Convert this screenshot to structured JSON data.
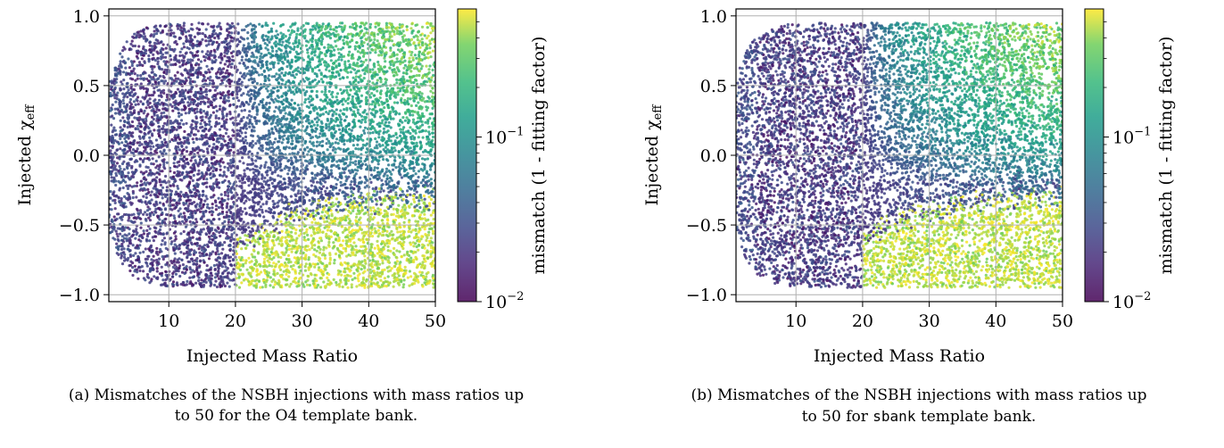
{
  "chart_data": [
    {
      "type": "scatter",
      "panel": "(a)",
      "xlabel": "Injected Mass Ratio",
      "ylabel_main": "Injected χ",
      "ylabel_sub": "eff",
      "xlim": [
        1,
        50
      ],
      "ylim": [
        -1.05,
        1.05
      ],
      "xticks": [
        10,
        20,
        30,
        40,
        50
      ],
      "yticks": [
        1.0,
        0.5,
        0.0,
        -0.5,
        -1.0
      ],
      "ytick_labels": [
        "1.0",
        "0.5",
        "0.0",
        "−0.5",
        "−1.0"
      ],
      "grid": true,
      "colorbar": {
        "label": "mismatch (1 - fitting factor)",
        "scale": "log",
        "range": [
          0.01,
          0.6
        ],
        "ticks": [
          {
            "base": "10",
            "exp": "−1",
            "value": 0.1
          },
          {
            "base": "10",
            "exp": "−2",
            "value": 0.01
          }
        ],
        "colormap": "viridis"
      },
      "distribution": {
        "region": "chi_eff between -0.95 and 0.95 with rounded ends near q=1",
        "low_mismatch_band": "q < 20",
        "high_mismatch_region": "q > 25 and chi_eff < -0.3 (mismatch ~0.5)",
        "moderate_region": "q > 30 and chi_eff > 0.4 (mismatch ~0.15-0.3)"
      },
      "caption_prefix": "(a) Mismatches of the NSBH injections with mass ratios up",
      "caption_line2": "to 50 for the O4 template bank."
    },
    {
      "type": "scatter",
      "panel": "(b)",
      "xlabel": "Injected Mass Ratio",
      "ylabel_main": "Injected χ",
      "ylabel_sub": "eff",
      "xlim": [
        1,
        50
      ],
      "ylim": [
        -1.05,
        1.05
      ],
      "xticks": [
        10,
        20,
        30,
        40,
        50
      ],
      "yticks": [
        1.0,
        0.5,
        0.0,
        -0.5,
        -1.0
      ],
      "ytick_labels": [
        "1.0",
        "0.5",
        "0.0",
        "−0.5",
        "−1.0"
      ],
      "grid": true,
      "colorbar": {
        "label": "mismatch (1 - fitting factor)",
        "scale": "log",
        "range": [
          0.01,
          0.6
        ],
        "ticks": [
          {
            "base": "10",
            "exp": "−1",
            "value": 0.1
          },
          {
            "base": "10",
            "exp": "−2",
            "value": 0.01
          }
        ],
        "colormap": "viridis"
      },
      "distribution": {
        "region": "chi_eff between -0.95 and 0.95 with rounded ends near q=1",
        "low_mismatch_band": "q < 20",
        "high_mismatch_region": "q > 25 and chi_eff < -0.3 (mismatch ~0.5)",
        "moderate_region": "q > 30 and chi_eff > 0.4 (mismatch ~0.15-0.3)"
      },
      "caption_prefix": "(b) Mismatches of the NSBH injections with mass ratios up",
      "caption_line2_pre": "to 50 for ",
      "caption_line2_mono": "sbank",
      "caption_line2_post": " template bank."
    }
  ]
}
